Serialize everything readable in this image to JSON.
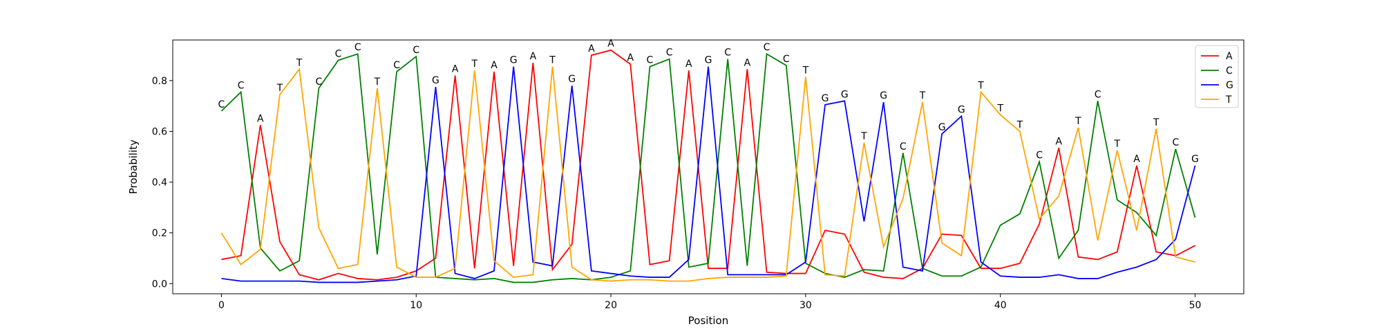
{
  "chart_data": {
    "type": "line",
    "xlabel": "Position",
    "ylabel": "Probability",
    "xlim": [
      -2.5,
      52.5
    ],
    "ylim": [
      -0.04,
      0.96
    ],
    "x_ticks": [
      0,
      10,
      20,
      30,
      40,
      50
    ],
    "y_ticks": [
      0.0,
      0.2,
      0.4,
      0.6,
      0.8
    ],
    "x": [
      0,
      1,
      2,
      3,
      4,
      5,
      6,
      7,
      8,
      9,
      10,
      11,
      12,
      13,
      14,
      15,
      16,
      17,
      18,
      19,
      20,
      21,
      22,
      23,
      24,
      25,
      26,
      27,
      28,
      29,
      30,
      31,
      32,
      33,
      34,
      35,
      36,
      37,
      38,
      39,
      40,
      41,
      42,
      43,
      44,
      45,
      46,
      47,
      48,
      49,
      50
    ],
    "grid": false,
    "legend_position": "top-right",
    "series": [
      {
        "name": "A",
        "color": "#ff0000",
        "values": [
          0.095,
          0.11,
          0.625,
          0.165,
          0.035,
          0.015,
          0.04,
          0.02,
          0.015,
          0.025,
          0.05,
          0.1,
          0.82,
          0.06,
          0.835,
          0.07,
          0.87,
          0.055,
          0.155,
          0.9,
          0.92,
          0.865,
          0.075,
          0.09,
          0.84,
          0.06,
          0.06,
          0.845,
          0.045,
          0.04,
          0.04,
          0.21,
          0.195,
          0.045,
          0.025,
          0.02,
          0.06,
          0.195,
          0.19,
          0.06,
          0.06,
          0.08,
          0.235,
          0.535,
          0.105,
          0.095,
          0.125,
          0.465,
          0.125,
          0.11,
          0.15
        ]
      },
      {
        "name": "C",
        "color": "#008000",
        "values": [
          0.68,
          0.755,
          0.14,
          0.05,
          0.09,
          0.77,
          0.88,
          0.905,
          0.115,
          0.835,
          0.895,
          0.025,
          0.02,
          0.015,
          0.02,
          0.005,
          0.005,
          0.015,
          0.02,
          0.015,
          0.025,
          0.05,
          0.855,
          0.885,
          0.065,
          0.08,
          0.885,
          0.07,
          0.905,
          0.86,
          0.08,
          0.04,
          0.025,
          0.055,
          0.05,
          0.515,
          0.06,
          0.03,
          0.03,
          0.065,
          0.23,
          0.275,
          0.48,
          0.1,
          0.21,
          0.72,
          0.33,
          0.28,
          0.19,
          0.53,
          0.26
        ]
      },
      {
        "name": "G",
        "color": "#0000ff",
        "values": [
          0.02,
          0.01,
          0.01,
          0.01,
          0.01,
          0.005,
          0.005,
          0.005,
          0.01,
          0.015,
          0.03,
          0.775,
          0.04,
          0.02,
          0.05,
          0.855,
          0.085,
          0.07,
          0.78,
          0.05,
          0.04,
          0.03,
          0.025,
          0.025,
          0.095,
          0.855,
          0.035,
          0.035,
          0.035,
          0.035,
          0.085,
          0.705,
          0.72,
          0.245,
          0.715,
          0.065,
          0.05,
          0.59,
          0.66,
          0.085,
          0.03,
          0.025,
          0.025,
          0.035,
          0.02,
          0.02,
          0.045,
          0.065,
          0.095,
          0.175,
          0.465
        ]
      },
      {
        "name": "T",
        "color": "#ffa500",
        "values": [
          0.2,
          0.075,
          0.135,
          0.745,
          0.845,
          0.22,
          0.06,
          0.075,
          0.77,
          0.065,
          0.025,
          0.025,
          0.06,
          0.84,
          0.09,
          0.025,
          0.035,
          0.855,
          0.065,
          0.015,
          0.01,
          0.015,
          0.015,
          0.01,
          0.01,
          0.02,
          0.025,
          0.025,
          0.025,
          0.03,
          0.815,
          0.035,
          0.03,
          0.555,
          0.145,
          0.335,
          0.715,
          0.16,
          0.11,
          0.755,
          0.665,
          0.6,
          0.255,
          0.345,
          0.615,
          0.17,
          0.525,
          0.21,
          0.61,
          0.105,
          0.085
        ]
      }
    ],
    "annotations": [
      "C",
      "C",
      "A",
      "T",
      "T",
      "C",
      "C",
      "C",
      "T",
      "C",
      "C",
      "G",
      "A",
      "T",
      "A",
      "G",
      "A",
      "T",
      "G",
      "A",
      "A",
      "A",
      "C",
      "C",
      "A",
      "G",
      "C",
      "A",
      "C",
      "C",
      "T",
      "G",
      "G",
      "T",
      "G",
      "C",
      "T",
      "G",
      "G",
      "T",
      "T",
      "T",
      "C",
      "A",
      "T",
      "C",
      "T",
      "A",
      "T",
      "C",
      "G"
    ]
  }
}
